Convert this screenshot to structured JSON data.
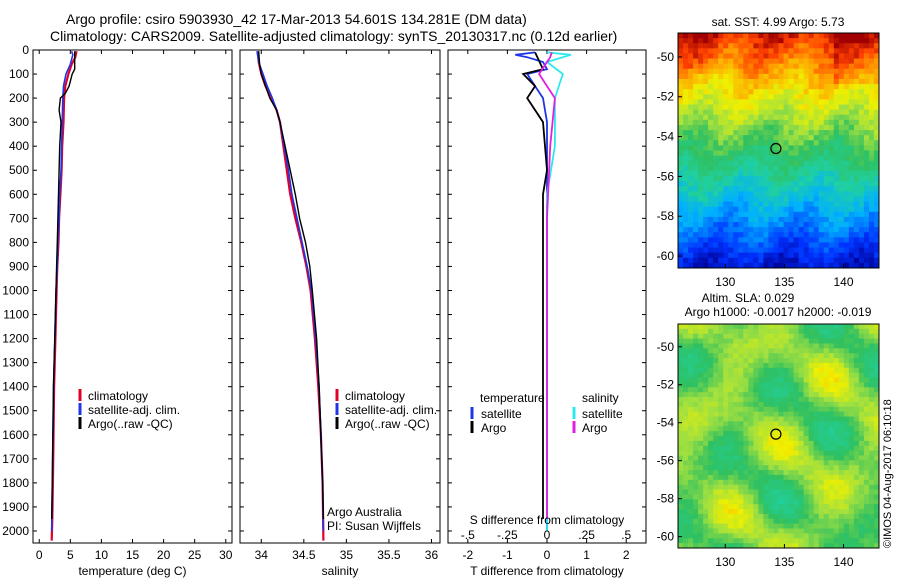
{
  "title_line1": "Argo profile: csiro 5903930_42 17-Mar-2013 54.601S 134.281E (DM data)",
  "title_line2": "Climatology: CARS2009. Satellite-adjusted climatology: synTS_20130317.nc (0.12d earlier)",
  "stamp": "©IMOS 04-Aug-2017 06:10:18",
  "colors": {
    "clim": "#e0002a",
    "sat": "#1f35e6",
    "argo": "#000000",
    "cyan": "#2ee8ee",
    "magenta": "#e020e0"
  },
  "legend_labels": [
    "climatology",
    "satellite-adj. clim.",
    "Argo(..raw -QC)"
  ],
  "diff_legend": {
    "temp_header": "temperature",
    "sal_header": "salinity",
    "satellite": "satellite",
    "argo": "Argo"
  },
  "pi_text": [
    "Argo Australia",
    "PI: Susan Wijffels"
  ],
  "map1_title": "sat. SST: 4.99 Argo: 5.73",
  "map2_title": [
    "Altim. SLA: 0.029",
    "Argo h1000: -0.0017 h2000: -0.019"
  ],
  "chart_data": [
    {
      "type": "line",
      "panel": "temperature",
      "xlabel": "temperature (deg C)",
      "xlim": [
        -1,
        31
      ],
      "xticks": [
        0,
        5,
        10,
        15,
        20,
        25,
        30
      ],
      "ylim": [
        0,
        2050
      ],
      "invert_y": true,
      "yticks": [
        0,
        100,
        200,
        300,
        400,
        500,
        600,
        700,
        800,
        900,
        1000,
        1100,
        1200,
        1300,
        1400,
        1500,
        1600,
        1700,
        1800,
        1900,
        2000
      ],
      "series": [
        {
          "name": "climatology",
          "points": [
            [
              6.0,
              5
            ],
            [
              5.8,
              30
            ],
            [
              5.2,
              60
            ],
            [
              4.7,
              100
            ],
            [
              4.2,
              150
            ],
            [
              4.0,
              200
            ],
            [
              3.9,
              300
            ],
            [
              3.7,
              400
            ],
            [
              3.6,
              500
            ],
            [
              3.4,
              600
            ],
            [
              3.2,
              700
            ],
            [
              3.1,
              800
            ],
            [
              2.9,
              900
            ],
            [
              2.8,
              1000
            ],
            [
              2.6,
              1200
            ],
            [
              2.4,
              1400
            ],
            [
              2.3,
              1600
            ],
            [
              2.2,
              1800
            ],
            [
              2.1,
              1950
            ],
            [
              2.0,
              2040
            ]
          ]
        },
        {
          "name": "satellite-adj. clim.",
          "points": [
            [
              5.2,
              5
            ],
            [
              5.4,
              20
            ],
            [
              5.0,
              60
            ],
            [
              4.3,
              100
            ],
            [
              3.9,
              150
            ],
            [
              3.8,
              200
            ],
            [
              3.7,
              300
            ],
            [
              3.6,
              400
            ],
            [
              3.5,
              500
            ],
            [
              3.3,
              600
            ],
            [
              3.2,
              700
            ],
            [
              3.0,
              800
            ],
            [
              2.9,
              900
            ],
            [
              2.7,
              1000
            ],
            [
              2.5,
              1200
            ],
            [
              2.3,
              1400
            ],
            [
              2.2,
              1600
            ],
            [
              2.1,
              1800
            ],
            [
              2.0,
              2000
            ]
          ]
        },
        {
          "name": "Argo(..raw -QC)",
          "points": [
            [
              5.7,
              5
            ],
            [
              5.7,
              80
            ],
            [
              5.3,
              100
            ],
            [
              4.8,
              150
            ],
            [
              4.2,
              180
            ],
            [
              3.4,
              200
            ],
            [
              3.2,
              250
            ],
            [
              3.5,
              300
            ],
            [
              3.3,
              400
            ],
            [
              3.2,
              500
            ],
            [
              3.1,
              600
            ],
            [
              3.0,
              700
            ],
            [
              2.9,
              800
            ],
            [
              2.8,
              900
            ],
            [
              2.7,
              1000
            ],
            [
              2.5,
              1200
            ],
            [
              2.3,
              1400
            ],
            [
              2.2,
              1600
            ],
            [
              2.1,
              1800
            ],
            [
              2.0,
              1950
            ]
          ]
        }
      ]
    },
    {
      "type": "line",
      "panel": "salinity",
      "xlabel": "salinity",
      "xlim": [
        33.75,
        36.1
      ],
      "xticks": [
        34,
        34.5,
        35,
        35.5,
        36
      ],
      "ylim": [
        0,
        2050
      ],
      "invert_y": true,
      "series": [
        {
          "name": "climatology",
          "points": [
            [
              33.96,
              5
            ],
            [
              33.97,
              50
            ],
            [
              34.0,
              100
            ],
            [
              34.05,
              150
            ],
            [
              34.12,
              200
            ],
            [
              34.18,
              250
            ],
            [
              34.22,
              300
            ],
            [
              34.26,
              400
            ],
            [
              34.3,
              500
            ],
            [
              34.34,
              600
            ],
            [
              34.4,
              700
            ],
            [
              34.47,
              800
            ],
            [
              34.53,
              900
            ],
            [
              34.58,
              1000
            ],
            [
              34.63,
              1200
            ],
            [
              34.67,
              1400
            ],
            [
              34.7,
              1600
            ],
            [
              34.72,
              1800
            ],
            [
              34.73,
              2040
            ]
          ]
        },
        {
          "name": "satellite-adj. clim.",
          "points": [
            [
              33.95,
              5
            ],
            [
              33.97,
              50
            ],
            [
              34.02,
              100
            ],
            [
              34.07,
              150
            ],
            [
              34.13,
              200
            ],
            [
              34.18,
              250
            ],
            [
              34.22,
              300
            ],
            [
              34.27,
              400
            ],
            [
              34.32,
              500
            ],
            [
              34.36,
              600
            ],
            [
              34.42,
              700
            ],
            [
              34.48,
              800
            ],
            [
              34.54,
              900
            ],
            [
              34.59,
              1000
            ],
            [
              34.64,
              1200
            ],
            [
              34.68,
              1400
            ],
            [
              34.7,
              1600
            ],
            [
              34.72,
              1800
            ],
            [
              34.73,
              2000
            ]
          ]
        },
        {
          "name": "Argo(..raw -QC)",
          "points": [
            [
              33.97,
              5
            ],
            [
              33.98,
              60
            ],
            [
              34.0,
              100
            ],
            [
              34.05,
              150
            ],
            [
              34.1,
              200
            ],
            [
              34.18,
              250
            ],
            [
              34.22,
              300
            ],
            [
              34.28,
              400
            ],
            [
              34.34,
              500
            ],
            [
              34.4,
              600
            ],
            [
              34.45,
              700
            ],
            [
              34.52,
              800
            ],
            [
              34.57,
              900
            ],
            [
              34.6,
              1000
            ],
            [
              34.65,
              1200
            ],
            [
              34.68,
              1400
            ],
            [
              34.7,
              1600
            ],
            [
              34.72,
              1800
            ],
            [
              34.73,
              1950
            ]
          ]
        }
      ]
    },
    {
      "type": "line",
      "panel": "difference",
      "xlabel": "T difference from climatology",
      "xlabel_top": "S difference from climatology",
      "xlim": [
        -2.5,
        2.5
      ],
      "xticks": [
        -2,
        -1,
        0,
        1,
        2
      ],
      "s_xticks": [
        -0.5,
        -0.25,
        0,
        0.25,
        0.5
      ],
      "ylim": [
        0,
        2050
      ],
      "invert_y": true,
      "series": [
        {
          "name": "temperature satellite",
          "points": [
            [
              -0.3,
              10
            ],
            [
              -0.8,
              20
            ],
            [
              -0.5,
              30
            ],
            [
              -0.1,
              50
            ],
            [
              0.0,
              80
            ],
            [
              -0.5,
              100
            ],
            [
              -0.3,
              150
            ],
            [
              -0.1,
              200
            ],
            [
              0.0,
              300
            ],
            [
              0.0,
              600
            ],
            [
              0.0,
              900
            ],
            [
              0.0,
              1200
            ],
            [
              0.0,
              1500
            ],
            [
              0.0,
              1800
            ],
            [
              0.0,
              2000
            ]
          ]
        },
        {
          "name": "temperature Argo",
          "points": [
            [
              -0.3,
              10
            ],
            [
              -0.1,
              80
            ],
            [
              -0.6,
              100
            ],
            [
              -0.3,
              150
            ],
            [
              -0.5,
              200
            ],
            [
              -0.1,
              300
            ],
            [
              0.0,
              500
            ],
            [
              -0.1,
              600
            ],
            [
              -0.1,
              900
            ],
            [
              -0.1,
              1200
            ],
            [
              -0.1,
              1500
            ],
            [
              -0.1,
              1800
            ],
            [
              -0.1,
              1950
            ]
          ]
        },
        {
          "name": "salinity satellite",
          "points": [
            [
              0.0,
              10
            ],
            [
              0.15,
              20
            ],
            [
              0.0,
              50
            ],
            [
              0.1,
              100
            ],
            [
              0.05,
              200
            ],
            [
              0.05,
              400
            ],
            [
              0.0,
              600
            ],
            [
              0.0,
              900
            ],
            [
              0.0,
              1200
            ],
            [
              0.0,
              1500
            ],
            [
              0.0,
              1800
            ],
            [
              0.0,
              2000
            ]
          ]
        },
        {
          "name": "salinity Argo",
          "points": [
            [
              0.03,
              10
            ],
            [
              0.02,
              30
            ],
            [
              -0.05,
              100
            ],
            [
              0.0,
              150
            ],
            [
              0.05,
              200
            ],
            [
              0.02,
              400
            ],
            [
              0.0,
              700
            ],
            [
              0.0,
              1000
            ],
            [
              0.0,
              1400
            ],
            [
              0.0,
              1800
            ],
            [
              0.0,
              1950
            ]
          ]
        }
      ]
    },
    {
      "type": "heatmap",
      "panel": "sat. SST",
      "title": "sat. SST: 4.99 Argo: 5.73",
      "xlim": [
        126,
        143
      ],
      "ylim": [
        -60.6,
        -48.8
      ],
      "xticks": [
        130,
        135,
        140
      ],
      "yticks": [
        -50,
        -52,
        -54,
        -56,
        -58,
        -60
      ],
      "marker": [
        134.281,
        -54.601
      ]
    },
    {
      "type": "heatmap",
      "panel": "Altim. SLA",
      "title": "Altim. SLA: 0.029 / Argo h1000: -0.0017 h2000: -0.019",
      "xlim": [
        126,
        143
      ],
      "ylim": [
        -60.6,
        -48.8
      ],
      "xticks": [
        130,
        135,
        140
      ],
      "yticks": [
        -50,
        -52,
        -54,
        -56,
        -58,
        -60
      ],
      "marker": [
        134.281,
        -54.601
      ]
    }
  ]
}
